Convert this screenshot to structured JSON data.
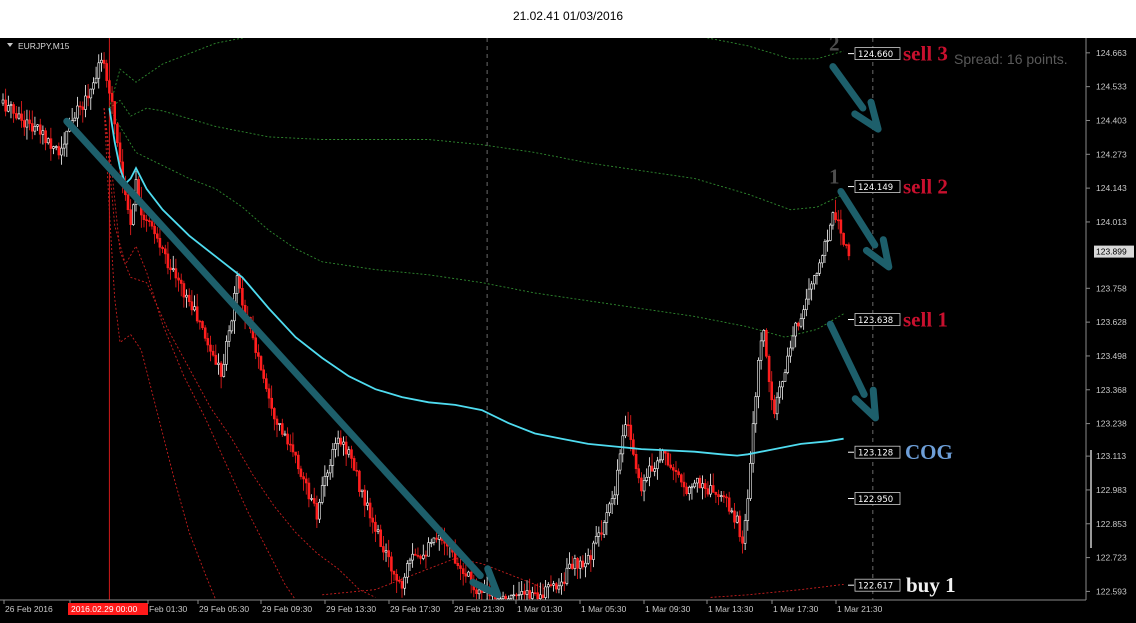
{
  "window": {
    "title": "21.02.41 01/03/2016"
  },
  "colors": {
    "background": "#000000",
    "candle_up": "#ffffff",
    "candle_down": "#ff1e1e",
    "cog_line": "#4fdcf0",
    "upper_bands": "#2f8a2f",
    "lower_bands": "#c81e1e",
    "arrows": "#1d5f6b",
    "vertical_marker": "#d11a1a",
    "sell_text": "#c8102e",
    "cog_text": "#6e9fd8",
    "buy_text": "#f2f2f2"
  },
  "chart_data": {
    "type": "candlestick",
    "symbol": "EURJPY,M15",
    "spread_text": "Spread: 16 points.",
    "ylim": [
      122.56,
      124.72
    ],
    "y_ticks": [
      "124.663",
      "124.533",
      "124.403",
      "124.273",
      "124.143",
      "124.013",
      "123.758",
      "123.628",
      "123.498",
      "123.368",
      "123.238",
      "123.113",
      "122.983",
      "122.853",
      "122.723",
      "122.593"
    ],
    "current_price": "123.899",
    "x_ticks": [
      "26 Feb 2016",
      "2016.02.29 00:00",
      "Feb 01:30",
      "29 Feb 05:30",
      "29 Feb 09:30",
      "29 Feb 13:30",
      "29 Feb 17:30",
      "29 Feb 21:30",
      "1 Mar 01:30",
      "1 Mar 05:30",
      "1 Mar 09:30",
      "1 Mar 13:30",
      "1 Mar 17:30",
      "1 Mar 21:30"
    ],
    "levels": [
      {
        "value": 124.66,
        "label": "124.660",
        "annotation": "sell 3",
        "marker": "2",
        "kind": "sell"
      },
      {
        "value": 124.149,
        "label": "124.149",
        "annotation": "sell 2",
        "marker": "1",
        "kind": "sell"
      },
      {
        "value": 123.638,
        "label": "123.638",
        "annotation": "sell 1",
        "marker": "",
        "kind": "sell"
      },
      {
        "value": 123.128,
        "label": "123.128",
        "annotation": "COG",
        "marker": "",
        "kind": "cog"
      },
      {
        "value": 122.95,
        "label": "122.950",
        "annotation": "",
        "marker": "",
        "kind": "level"
      },
      {
        "value": 122.617,
        "label": "122.617",
        "annotation": "buy 1",
        "marker": "",
        "kind": "buy"
      }
    ],
    "price_path": [
      [
        0,
        124.47
      ],
      [
        8,
        124.4
      ],
      [
        16,
        124.34
      ],
      [
        22,
        124.28
      ],
      [
        26,
        124.41
      ],
      [
        30,
        124.46
      ],
      [
        34,
        124.55
      ],
      [
        36,
        124.63
      ],
      [
        38,
        124.6
      ],
      [
        40,
        124.53
      ],
      [
        42,
        124.4
      ],
      [
        44,
        124.25
      ],
      [
        46,
        124.1
      ],
      [
        48,
        124.02
      ],
      [
        50,
        124.17
      ],
      [
        52,
        124.06
      ],
      [
        56,
        123.98
      ],
      [
        60,
        123.9
      ],
      [
        66,
        123.78
      ],
      [
        72,
        123.67
      ],
      [
        78,
        123.52
      ],
      [
        82,
        123.44
      ],
      [
        86,
        123.64
      ],
      [
        88,
        123.82
      ],
      [
        90,
        123.7
      ],
      [
        94,
        123.56
      ],
      [
        98,
        123.42
      ],
      [
        102,
        123.28
      ],
      [
        106,
        123.18
      ],
      [
        110,
        123.1
      ],
      [
        116,
        122.94
      ],
      [
        118,
        122.88
      ],
      [
        120,
        122.98
      ],
      [
        122,
        123.05
      ],
      [
        126,
        123.18
      ],
      [
        130,
        123.13
      ],
      [
        134,
        123.0
      ],
      [
        138,
        122.88
      ],
      [
        142,
        122.78
      ],
      [
        146,
        122.68
      ],
      [
        150,
        122.62
      ],
      [
        152,
        122.72
      ],
      [
        154,
        122.75
      ],
      [
        158,
        122.74
      ],
      [
        162,
        122.78
      ],
      [
        166,
        122.8
      ],
      [
        170,
        122.72
      ],
      [
        174,
        122.67
      ],
      [
        178,
        122.6
      ],
      [
        183,
        122.58
      ],
      [
        188,
        122.57
      ],
      [
        196,
        122.575
      ],
      [
        204,
        122.59
      ],
      [
        210,
        122.63
      ],
      [
        214,
        122.7
      ],
      [
        218,
        122.68
      ],
      [
        222,
        122.76
      ],
      [
        226,
        122.86
      ],
      [
        230,
        122.96
      ],
      [
        232,
        123.12
      ],
      [
        234,
        123.23
      ],
      [
        236,
        123.2
      ],
      [
        238,
        123.06
      ],
      [
        240,
        123.0
      ],
      [
        244,
        123.07
      ],
      [
        248,
        123.13
      ],
      [
        252,
        123.06
      ],
      [
        256,
        122.98
      ],
      [
        260,
        123.02
      ],
      [
        264,
        122.99
      ],
      [
        268,
        122.97
      ],
      [
        272,
        122.93
      ],
      [
        276,
        122.86
      ],
      [
        278,
        122.78
      ],
      [
        280,
        122.96
      ],
      [
        282,
        123.22
      ],
      [
        284,
        123.48
      ],
      [
        286,
        123.6
      ],
      [
        288,
        123.4
      ],
      [
        290,
        123.3
      ],
      [
        294,
        123.44
      ],
      [
        298,
        123.6
      ],
      [
        302,
        123.72
      ],
      [
        306,
        123.82
      ],
      [
        310,
        123.96
      ],
      [
        312,
        124.05
      ],
      [
        314,
        124.02
      ],
      [
        316,
        123.95
      ],
      [
        318,
        123.9
      ]
    ],
    "cog_path": [
      [
        40,
        124.45
      ],
      [
        42,
        124.32
      ],
      [
        44,
        124.22
      ],
      [
        46,
        124.16
      ],
      [
        48,
        124.18
      ],
      [
        50,
        124.22
      ],
      [
        54,
        124.14
      ],
      [
        60,
        124.06
      ],
      [
        70,
        123.96
      ],
      [
        80,
        123.88
      ],
      [
        90,
        123.8
      ],
      [
        100,
        123.68
      ],
      [
        110,
        123.57
      ],
      [
        120,
        123.49
      ],
      [
        130,
        123.42
      ],
      [
        140,
        123.37
      ],
      [
        150,
        123.34
      ],
      [
        160,
        123.32
      ],
      [
        170,
        123.31
      ],
      [
        180,
        123.29
      ],
      [
        190,
        123.24
      ],
      [
        200,
        123.2
      ],
      [
        210,
        123.18
      ],
      [
        220,
        123.16
      ],
      [
        230,
        123.15
      ],
      [
        240,
        123.14
      ],
      [
        250,
        123.135
      ],
      [
        260,
        123.13
      ],
      [
        270,
        123.12
      ],
      [
        276,
        123.115
      ],
      [
        280,
        123.12
      ],
      [
        290,
        123.14
      ],
      [
        300,
        123.16
      ],
      [
        310,
        123.17
      ],
      [
        316,
        123.18
      ]
    ],
    "upper_bands": [
      [
        [
          40,
          124.45
        ],
        [
          44,
          124.6
        ],
        [
          50,
          124.55
        ],
        [
          60,
          124.62
        ],
        [
          70,
          124.66
        ],
        [
          80,
          124.7
        ],
        [
          90,
          124.72
        ],
        [
          100,
          124.74
        ],
        [
          120,
          124.75
        ],
        [
          140,
          124.76
        ],
        [
          160,
          124.77
        ],
        [
          180,
          124.76
        ],
        [
          200,
          124.77
        ],
        [
          220,
          124.76
        ],
        [
          240,
          124.76
        ],
        [
          260,
          124.73
        ],
        [
          280,
          124.69
        ],
        [
          296,
          124.64
        ],
        [
          306,
          124.64
        ],
        [
          316,
          124.67
        ]
      ],
      [
        [
          40,
          124.45
        ],
        [
          44,
          124.48
        ],
        [
          48,
          124.42
        ],
        [
          54,
          124.45
        ],
        [
          60,
          124.44
        ],
        [
          70,
          124.41
        ],
        [
          80,
          124.38
        ],
        [
          90,
          124.36
        ],
        [
          100,
          124.34
        ],
        [
          120,
          124.33
        ],
        [
          140,
          124.33
        ],
        [
          160,
          124.33
        ],
        [
          180,
          124.31
        ],
        [
          200,
          124.28
        ],
        [
          220,
          124.24
        ],
        [
          240,
          124.21
        ],
        [
          260,
          124.18
        ],
        [
          280,
          124.12
        ],
        [
          296,
          124.06
        ],
        [
          306,
          124.07
        ],
        [
          316,
          124.12
        ]
      ],
      [
        [
          40,
          124.45
        ],
        [
          44,
          124.38
        ],
        [
          50,
          124.28
        ],
        [
          60,
          124.23
        ],
        [
          70,
          124.18
        ],
        [
          80,
          124.14
        ],
        [
          90,
          124.07
        ],
        [
          100,
          123.98
        ],
        [
          110,
          123.91
        ],
        [
          120,
          123.86
        ],
        [
          140,
          123.83
        ],
        [
          160,
          123.81
        ],
        [
          180,
          123.78
        ],
        [
          200,
          123.74
        ],
        [
          220,
          123.71
        ],
        [
          240,
          123.68
        ],
        [
          260,
          123.65
        ],
        [
          280,
          123.61
        ],
        [
          294,
          123.57
        ],
        [
          306,
          123.6
        ],
        [
          316,
          123.66
        ]
      ]
    ],
    "lower_bands": [
      [
        [
          38,
          124.45
        ],
        [
          41,
          124.2
        ],
        [
          44,
          123.9
        ],
        [
          48,
          123.8
        ],
        [
          54,
          123.78
        ],
        [
          62,
          123.6
        ],
        [
          70,
          123.45
        ],
        [
          78,
          123.3
        ],
        [
          86,
          123.18
        ],
        [
          94,
          123.04
        ],
        [
          102,
          122.92
        ],
        [
          110,
          122.82
        ],
        [
          118,
          122.74
        ],
        [
          126,
          122.68
        ],
        [
          134,
          122.6
        ],
        [
          140,
          122.57
        ]
      ],
      [
        [
          38,
          124.45
        ],
        [
          42,
          124.0
        ],
        [
          46,
          123.85
        ],
        [
          50,
          123.92
        ],
        [
          54,
          123.82
        ],
        [
          60,
          123.62
        ],
        [
          68,
          123.42
        ],
        [
          76,
          123.26
        ],
        [
          84,
          123.08
        ],
        [
          92,
          122.9
        ],
        [
          100,
          122.74
        ],
        [
          106,
          122.62
        ],
        [
          110,
          122.56
        ]
      ],
      [
        [
          38,
          124.45
        ],
        [
          40,
          124.05
        ],
        [
          42,
          123.72
        ],
        [
          44,
          123.55
        ],
        [
          48,
          123.58
        ],
        [
          52,
          123.52
        ],
        [
          58,
          123.28
        ],
        [
          64,
          123.04
        ],
        [
          70,
          122.82
        ],
        [
          76,
          122.66
        ],
        [
          80,
          122.56
        ]
      ],
      [
        [
          120,
          122.58
        ],
        [
          140,
          122.6
        ],
        [
          160,
          122.68
        ],
        [
          170,
          122.72
        ],
        [
          180,
          122.7
        ],
        [
          190,
          122.66
        ],
        [
          200,
          122.62
        ],
        [
          204,
          122.6
        ]
      ],
      [
        [
          266,
          122.57
        ],
        [
          280,
          122.58
        ],
        [
          300,
          122.6
        ],
        [
          316,
          122.62
        ]
      ]
    ],
    "arrows": [
      {
        "from": [
          24,
          124.4
        ],
        "to": [
          186,
          122.58
        ]
      },
      {
        "from": [
          312,
          124.61
        ],
        "to": [
          329,
          124.37
        ]
      },
      {
        "from": [
          315,
          124.13
        ],
        "to": [
          333,
          123.84
        ]
      },
      {
        "from": [
          311,
          123.62
        ],
        "to": [
          328,
          123.26
        ]
      }
    ],
    "vertical_marker_index": 40,
    "separator_indices": [
      182,
      327
    ]
  }
}
